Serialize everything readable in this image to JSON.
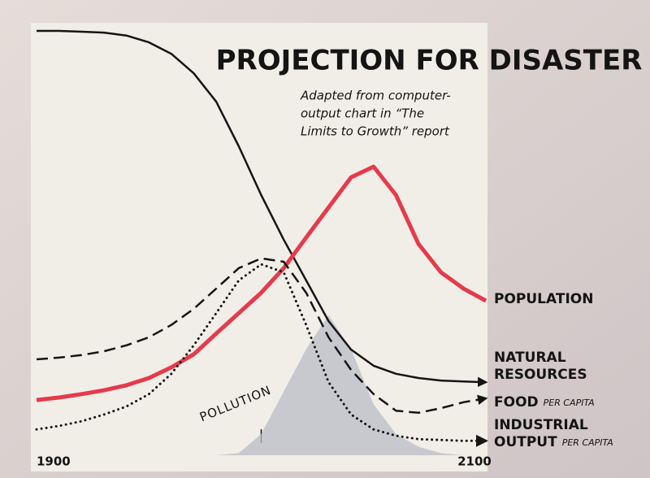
{
  "chart_data": {
    "type": "line",
    "title": "PROJECTION FOR DISASTER",
    "subtitle": [
      "Adapted from computer-",
      "output chart in “The",
      "Limits to Growth” report"
    ],
    "annotation": "POLLUTION",
    "x": [
      1900,
      1910,
      1920,
      1930,
      1940,
      1950,
      1960,
      1970,
      1980,
      1990,
      2000,
      2010,
      2020,
      2030,
      2040,
      2050,
      2060,
      2070,
      2080,
      2090,
      2100
    ],
    "xlim": [
      1900,
      2100
    ],
    "xticks": [
      1900,
      {
        "value": 2000,
        "label": null
      },
      2100
    ],
    "ylim": [
      0,
      100
    ],
    "series": [
      {
        "name": "NATURAL RESOURCES",
        "color": "#151515",
        "style": "solid",
        "arrow": true,
        "values": [
          100,
          100,
          99.8,
          99.6,
          98.9,
          97.3,
          94.6,
          90,
          83.3,
          72.8,
          61.3,
          50.8,
          41.2,
          31.6,
          24.9,
          21.1,
          19.2,
          18.2,
          17.6,
          17.4,
          17.2
        ]
      },
      {
        "name": "POPULATION",
        "color": "#e63a4b",
        "style": "thick",
        "arrow": false,
        "values": [
          13.0,
          13.6,
          14.4,
          15.3,
          16.5,
          18.2,
          20.7,
          23.8,
          28.7,
          33.5,
          38.3,
          44.1,
          51.3,
          58.4,
          65.5,
          68.0,
          61.3,
          49.8,
          43.1,
          39.3,
          36.4
        ]
      },
      {
        "name": "FOOD",
        "qualifier": "PER CAPITA",
        "color": "#151515",
        "style": "dashed",
        "arrow": true,
        "values": [
          22.6,
          23.0,
          23.6,
          24.5,
          25.9,
          27.8,
          30.7,
          34.5,
          39.3,
          44.1,
          46.4,
          45.6,
          38.3,
          27.8,
          20.1,
          14.4,
          10.5,
          10.0,
          11.1,
          12.5,
          13.4
        ]
      },
      {
        "name": "INDUSTRIAL OUTPUT",
        "qualifier": "PER CAPITA",
        "color": "#151515",
        "style": "dotted",
        "arrow": true,
        "values": [
          6.1,
          6.9,
          8.0,
          9.6,
          11.5,
          14.4,
          19.2,
          25.9,
          33.5,
          41.2,
          45.0,
          43.1,
          30.7,
          17.2,
          9.6,
          6.1,
          4.6,
          3.8,
          3.6,
          3.4,
          3.4
        ]
      },
      {
        "name": "POLLUTION",
        "color": "#b8bcc6",
        "style": "area",
        "arrow": false,
        "values": [
          0,
          0,
          0,
          0,
          0,
          0,
          0,
          0,
          0,
          0.5,
          5,
          15,
          25,
          33,
          25,
          12,
          5,
          2,
          0.5,
          0,
          0
        ]
      }
    ]
  }
}
